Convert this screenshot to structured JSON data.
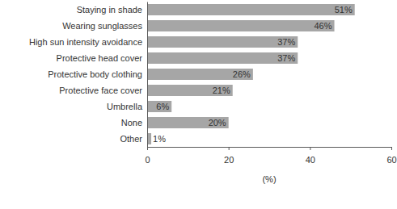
{
  "chart_data": {
    "type": "bar",
    "orientation": "horizontal",
    "categories": [
      "Staying in shade",
      "Wearing sunglasses",
      "High sun intensity avoidance",
      "Protective head cover",
      "Protective body clothing",
      "Protective face cover",
      "Umbrella",
      "None",
      "Other"
    ],
    "values": [
      51,
      46,
      37,
      37,
      26,
      21,
      6,
      20,
      1
    ],
    "value_labels": [
      "51%",
      "46%",
      "37%",
      "37%",
      "26%",
      "21%",
      "6%",
      "20%",
      "1%"
    ],
    "data_labels": true,
    "color": "#a6a6a6",
    "x_label": "(%)",
    "xlim": [
      0,
      60
    ],
    "xticks": [
      0,
      20,
      40,
      60
    ],
    "grid": false
  }
}
